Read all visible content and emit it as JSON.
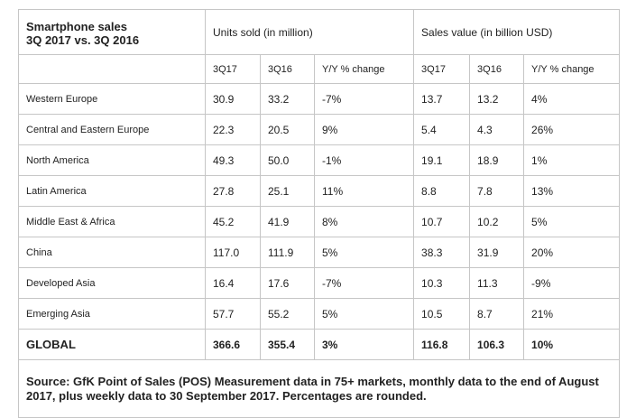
{
  "table": {
    "title_line1": "Smartphone sales",
    "title_line2": "3Q 2017 vs. 3Q 2016",
    "group_units": "Units sold (in million)",
    "group_value": "Sales value (in billion USD)",
    "columns": [
      "3Q17",
      "3Q16",
      "Y/Y % change",
      "3Q17",
      "3Q16",
      "Y/Y % change"
    ],
    "rows": [
      {
        "region": "Western Europe",
        "u17": "30.9",
        "u16": "33.2",
        "uchg": "-7%",
        "v17": "13.7",
        "v16": "13.2",
        "vchg": "4%"
      },
      {
        "region": "Central and Eastern Europe",
        "u17": "22.3",
        "u16": "20.5",
        "uchg": "9%",
        "v17": "5.4",
        "v16": "4.3",
        "vchg": "26%"
      },
      {
        "region": "North America",
        "u17": "49.3",
        "u16": "50.0",
        "uchg": "-1%",
        "v17": "19.1",
        "v16": "18.9",
        "vchg": "1%"
      },
      {
        "region": "Latin America",
        "u17": "27.8",
        "u16": "25.1",
        "uchg": "11%",
        "v17": "8.8",
        "v16": "7.8",
        "vchg": "13%"
      },
      {
        "region": "Middle East & Africa",
        "u17": "45.2",
        "u16": "41.9",
        "uchg": "8%",
        "v17": "10.7",
        "v16": "10.2",
        "vchg": "5%"
      },
      {
        "region": "China",
        "u17": "117.0",
        "u16": "111.9",
        "uchg": "5%",
        "v17": "38.3",
        "v16": "31.9",
        "vchg": "20%"
      },
      {
        "region": "Developed Asia",
        "u17": "16.4",
        "u16": "17.6",
        "uchg": "-7%",
        "v17": "10.3",
        "v16": "11.3",
        "vchg": "-9%"
      },
      {
        "region": "Emerging Asia",
        "u17": "57.7",
        "u16": "55.2",
        "uchg": "5%",
        "v17": "10.5",
        "v16": "8.7",
        "vchg": "21%"
      }
    ],
    "global": {
      "region": "GLOBAL",
      "u17": "366.6",
      "u16": "355.4",
      "uchg": "3%",
      "v17": "116.8",
      "v16": "106.3",
      "vchg": "10%"
    },
    "source": "Source: GfK Point of Sales (POS) Measurement data in 75+ markets, monthly data to the end of August 2017, plus weekly data to 30 September 2017. Percentages are rounded."
  }
}
